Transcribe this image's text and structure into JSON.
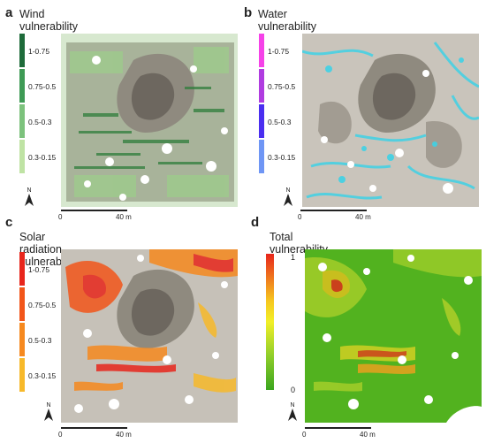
{
  "panels": [
    {
      "letter": "a",
      "title": "Wind vulnerability",
      "legend": [
        {
          "label": "1-0.75",
          "color": "#1e6b3a"
        },
        {
          "label": "0.75-0.5",
          "color": "#3e9a55"
        },
        {
          "label": "0.5-0.3",
          "color": "#7cc27c"
        },
        {
          "label": "0.3-0.15",
          "color": "#bfe3a4"
        }
      ],
      "scale": {
        "start": "0",
        "end": "40 m"
      },
      "north": "N"
    },
    {
      "letter": "b",
      "title": "Water vulnerability",
      "legend": [
        {
          "label": "1-0.75",
          "color": "#f542e8"
        },
        {
          "label": "0.75-0.5",
          "color": "#b03ce0"
        },
        {
          "label": "0.5-0.3",
          "color": "#4a2ef0"
        },
        {
          "label": "0.3-0.15",
          "color": "#6f96f5"
        }
      ],
      "scale": {
        "start": "0",
        "end": "40 m"
      },
      "north": "N"
    },
    {
      "letter": "c",
      "title": "Solar radiation vulnerability",
      "legend": [
        {
          "label": "1-0.75",
          "color": "#e8261c"
        },
        {
          "label": "0.75-0.5",
          "color": "#f2561a"
        },
        {
          "label": "0.5-0.3",
          "color": "#f6891f"
        },
        {
          "label": "0.3-0.15",
          "color": "#f7b92a"
        }
      ],
      "scale": {
        "start": "0",
        "end": "40 m"
      },
      "north": "N"
    },
    {
      "letter": "d",
      "title": "Total vulnerability",
      "colorbar": {
        "max_label": "1",
        "min_label": "0",
        "colors": [
          "#e8261c",
          "#f6c81f",
          "#f2ef28",
          "#8fce2a",
          "#3ba51e"
        ]
      },
      "scale": {
        "start": "0",
        "end": "40 m"
      },
      "north": "N"
    }
  ]
}
